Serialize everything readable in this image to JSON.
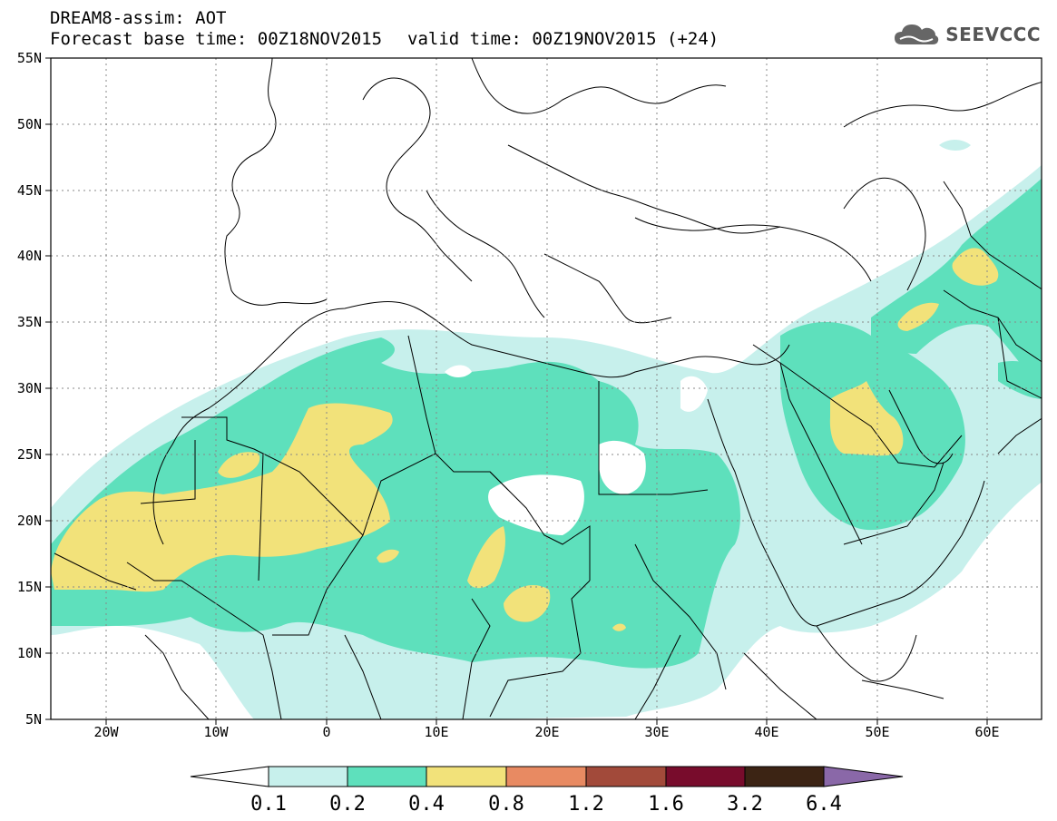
{
  "header": {
    "title_line1": "DREAM8-assim: AOT",
    "forecast_base": "Forecast base time: 00Z18NOV2015",
    "valid_time": "valid time: 00Z19NOV2015 (+24)"
  },
  "logo": {
    "text": "SEEVCCC",
    "icon": "cloud-icon"
  },
  "map": {
    "lon_labels": [
      "20W",
      "10W",
      "0",
      "10E",
      "20E",
      "30E",
      "40E",
      "50E",
      "60E"
    ],
    "lat_labels": [
      "55N",
      "50N",
      "45N",
      "40N",
      "35N",
      "30N",
      "25N",
      "20N",
      "15N",
      "10N",
      "5N"
    ]
  },
  "legend": {
    "levels": [
      "0.1",
      "0.2",
      "0.4",
      "0.8",
      "1.2",
      "1.6",
      "3.2",
      "6.4"
    ],
    "colors": [
      "#c7f0ec",
      "#5ee0bc",
      "#f2e27a",
      "#e88a62",
      "#a24a3a",
      "#780c2c",
      "#3c2414",
      "#8a68a8"
    ]
  }
}
